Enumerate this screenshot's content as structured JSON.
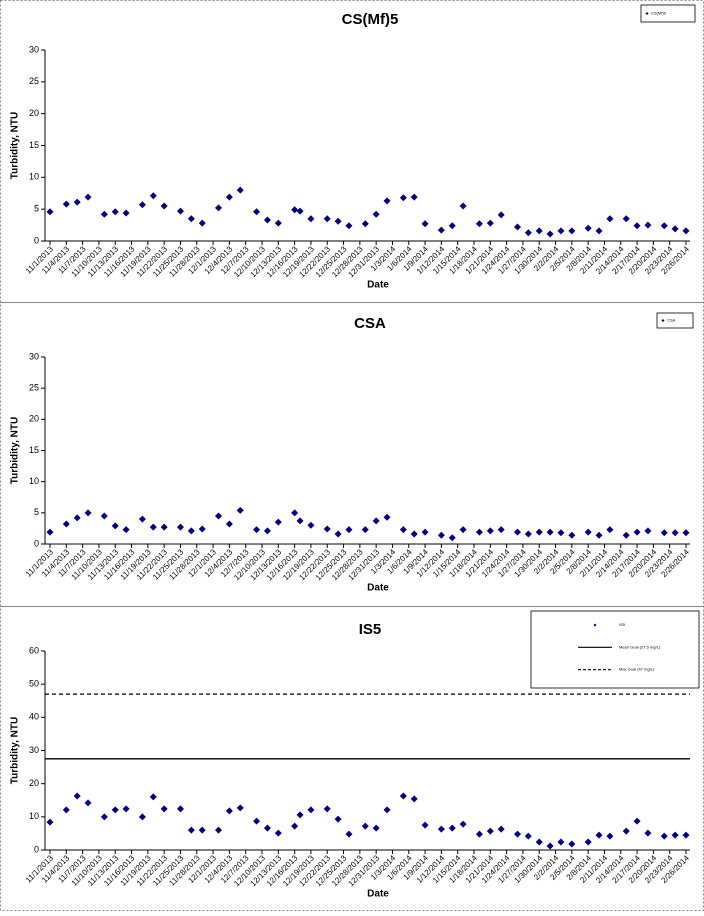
{
  "chart_data": [
    {
      "type": "scatter",
      "title": "CS(Mf)5",
      "x_label": "Date",
      "y_label": "Turbidity, NTU",
      "x": [
        "11/1/2013",
        "11/4/2013",
        "11/6/2013",
        "11/8/2013",
        "11/11/2013",
        "11/13/2013",
        "11/15/2013",
        "11/18/2013",
        "11/20/2013",
        "11/22/2013",
        "11/25/2013",
        "11/27/2013",
        "11/29/2013",
        "12/2/2013",
        "12/4/2013",
        "12/6/2013",
        "12/9/2013",
        "12/11/2013",
        "12/13/2013",
        "12/16/2013",
        "12/17/2013",
        "12/19/2013",
        "12/22/2013",
        "12/24/2013",
        "12/26/2013",
        "12/29/2013",
        "12/31/2013",
        "1/2/2014",
        "1/5/2014",
        "1/7/2014",
        "1/9/2014",
        "1/12/2014",
        "1/14/2014",
        "1/16/2014",
        "1/19/2014",
        "1/21/2014",
        "1/23/2014",
        "1/26/2014",
        "1/28/2014",
        "1/30/2014",
        "2/1/2014",
        "2/3/2014",
        "2/5/2014",
        "2/8/2014",
        "2/10/2014",
        "2/12/2014",
        "2/15/2014",
        "2/17/2014",
        "2/19/2014",
        "2/22/2014",
        "2/24/2014",
        "2/26/2014"
      ],
      "series": [
        {
          "name": "CS(Mf)5",
          "color": "#000080",
          "values": [
            4.6,
            5.8,
            6.1,
            6.9,
            4.2,
            4.6,
            4.4,
            5.7,
            7.1,
            5.5,
            4.7,
            3.5,
            2.8,
            5.2,
            6.9,
            8.0,
            4.6,
            3.3,
            2.8,
            4.9,
            4.7,
            3.5,
            3.5,
            3.1,
            2.4,
            2.7,
            4.2,
            6.3,
            6.8,
            6.9,
            2.7,
            1.7,
            2.4,
            5.5,
            2.7,
            2.8,
            4.1,
            2.2,
            1.3,
            1.6,
            1.1,
            1.6,
            1.6,
            2.0,
            1.6,
            3.5,
            3.5,
            2.4,
            2.5,
            2.4,
            1.9,
            1.6
          ]
        }
      ],
      "xlim": [
        "11/1/2013",
        "2/26/2014"
      ],
      "xticks": [
        "11/1/2013",
        "11/4/2013",
        "11/7/2013",
        "11/10/2013",
        "11/13/2013",
        "11/16/2013",
        "11/19/2013",
        "11/22/2013",
        "11/25/2013",
        "11/28/2013",
        "12/1/2013",
        "12/4/2013",
        "12/7/2013",
        "12/10/2013",
        "12/13/2013",
        "12/16/2013",
        "12/19/2013",
        "12/22/2013",
        "12/25/2013",
        "12/28/2013",
        "12/31/2013",
        "1/3/2014",
        "1/6/2014",
        "1/9/2014",
        "1/12/2014",
        "1/15/2014",
        "1/18/2014",
        "1/21/2014",
        "1/24/2014",
        "1/27/2014",
        "1/30/2014",
        "2/2/2014",
        "2/5/2014",
        "2/8/2014",
        "2/11/2014",
        "2/14/2014",
        "2/17/2014",
        "2/20/2014",
        "2/23/2014",
        "2/26/2014"
      ],
      "ylim": [
        0,
        30
      ],
      "yticks": [
        0,
        5,
        10,
        15,
        20,
        25,
        30
      ]
    },
    {
      "type": "scatter",
      "title": "CSA",
      "x_label": "Date",
      "y_label": "Turbidity, NTU",
      "x": [
        "11/1/2013",
        "11/4/2013",
        "11/6/2013",
        "11/8/2013",
        "11/11/2013",
        "11/13/2013",
        "11/15/2013",
        "11/18/2013",
        "11/20/2013",
        "11/22/2013",
        "11/25/2013",
        "11/27/2013",
        "11/29/2013",
        "12/2/2013",
        "12/4/2013",
        "12/6/2013",
        "12/9/2013",
        "12/11/2013",
        "12/13/2013",
        "12/16/2013",
        "12/17/2013",
        "12/19/2013",
        "12/22/2013",
        "12/24/2013",
        "12/26/2013",
        "12/29/2013",
        "12/31/2013",
        "1/2/2014",
        "1/5/2014",
        "1/7/2014",
        "1/9/2014",
        "1/12/2014",
        "1/14/2014",
        "1/16/2014",
        "1/19/2014",
        "1/21/2014",
        "1/23/2014",
        "1/26/2014",
        "1/28/2014",
        "1/30/2014",
        "2/1/2014",
        "2/3/2014",
        "2/5/2014",
        "2/8/2014",
        "2/10/2014",
        "2/12/2014",
        "2/15/2014",
        "2/17/2014",
        "2/19/2014",
        "2/22/2014",
        "2/24/2014",
        "2/26/2014"
      ],
      "series": [
        {
          "name": "CSA",
          "color": "#000080",
          "values": [
            1.9,
            3.2,
            4.2,
            5.0,
            4.5,
            2.9,
            2.3,
            4.0,
            2.7,
            2.7,
            2.7,
            2.1,
            2.4,
            4.5,
            3.2,
            5.4,
            2.3,
            2.1,
            3.5,
            5.0,
            3.7,
            3.0,
            2.4,
            1.6,
            2.3,
            2.3,
            3.7,
            4.3,
            2.3,
            1.6,
            1.9,
            1.4,
            1.0,
            2.3,
            1.9,
            2.1,
            2.3,
            1.9,
            1.6,
            1.9,
            1.9,
            1.8,
            1.4,
            1.9,
            1.4,
            2.3,
            1.4,
            1.9,
            2.1,
            1.8,
            1.8,
            1.8
          ]
        }
      ],
      "xlim": [
        "11/1/2013",
        "2/26/2014"
      ],
      "xticks": [
        "11/1/2013",
        "11/4/2013",
        "11/7/2013",
        "11/10/2013",
        "11/13/2013",
        "11/16/2013",
        "11/19/2013",
        "11/22/2013",
        "11/25/2013",
        "11/28/2013",
        "12/1/2013",
        "12/4/2013",
        "12/7/2013",
        "12/10/2013",
        "12/13/2013",
        "12/16/2013",
        "12/19/2013",
        "12/22/2013",
        "12/25/2013",
        "12/28/2013",
        "12/31/2013",
        "1/3/2014",
        "1/6/2014",
        "1/9/2014",
        "1/12/2014",
        "1/15/2014",
        "1/18/2014",
        "1/21/2014",
        "1/24/2014",
        "1/27/2014",
        "1/30/2014",
        "2/2/2014",
        "2/5/2014",
        "2/8/2014",
        "2/11/2014",
        "2/14/2014",
        "2/17/2014",
        "2/20/2014",
        "2/23/2014",
        "2/26/2014"
      ],
      "ylim": [
        0,
        30
      ],
      "yticks": [
        0,
        5,
        10,
        15,
        20,
        25,
        30
      ]
    },
    {
      "type": "scatter",
      "title": "IS5",
      "x_label": "Date",
      "y_label": "Turbidity, NTU",
      "x": [
        "11/1/2013",
        "11/4/2013",
        "11/6/2013",
        "11/8/2013",
        "11/11/2013",
        "11/13/2013",
        "11/15/2013",
        "11/18/2013",
        "11/20/2013",
        "11/22/2013",
        "11/25/2013",
        "11/27/2013",
        "11/29/2013",
        "12/2/2013",
        "12/4/2013",
        "12/6/2013",
        "12/9/2013",
        "12/11/2013",
        "12/13/2013",
        "12/16/2013",
        "12/17/2013",
        "12/19/2013",
        "12/22/2013",
        "12/24/2013",
        "12/26/2013",
        "12/29/2013",
        "12/31/2013",
        "1/2/2014",
        "1/5/2014",
        "1/7/2014",
        "1/9/2014",
        "1/12/2014",
        "1/14/2014",
        "1/16/2014",
        "1/19/2014",
        "1/21/2014",
        "1/23/2014",
        "1/26/2014",
        "1/28/2014",
        "1/30/2014",
        "2/1/2014",
        "2/3/2014",
        "2/5/2014",
        "2/8/2014",
        "2/10/2014",
        "2/12/2014",
        "2/15/2014",
        "2/17/2014",
        "2/19/2014",
        "2/22/2014",
        "2/24/2014",
        "2/26/2014"
      ],
      "series": [
        {
          "name": "IS5",
          "color": "#000080",
          "values": [
            8.4,
            12.1,
            16.3,
            14.2,
            10.0,
            12.1,
            12.4,
            10.0,
            16.0,
            12.4,
            12.4,
            6.0,
            6.0,
            6.0,
            11.8,
            12.7,
            8.7,
            6.6,
            5.1,
            7.2,
            10.6,
            12.1,
            12.4,
            9.3,
            4.8,
            7.2,
            6.6,
            12.1,
            16.3,
            15.4,
            7.5,
            6.3,
            6.6,
            7.8,
            4.8,
            5.7,
            6.3,
            4.8,
            4.2,
            2.4,
            1.2,
            2.4,
            1.8,
            2.4,
            4.5,
            4.2,
            5.7,
            8.7,
            5.1,
            4.2,
            4.5,
            4.5
          ]
        }
      ],
      "lines": [
        {
          "name": "Mean Goal (27.5 mg/L)",
          "value": 27.5,
          "style": "solid"
        },
        {
          "name": "Max Goal (47 mg/L)",
          "value": 47,
          "style": "dashed"
        }
      ],
      "xlim": [
        "11/1/2013",
        "2/26/2014"
      ],
      "xticks": [
        "11/1/2013",
        "11/4/2013",
        "11/7/2013",
        "11/10/2013",
        "11/13/2013",
        "11/16/2013",
        "11/19/2013",
        "11/22/2013",
        "11/25/2013",
        "11/28/2013",
        "12/1/2013",
        "12/4/2013",
        "12/7/2013",
        "12/10/2013",
        "12/13/2013",
        "12/16/2013",
        "12/19/2013",
        "12/22/2013",
        "12/25/2013",
        "12/28/2013",
        "12/31/2013",
        "1/3/2014",
        "1/6/2014",
        "1/9/2014",
        "1/12/2014",
        "1/15/2014",
        "1/18/2014",
        "1/21/2014",
        "1/24/2014",
        "1/27/2014",
        "1/30/2014",
        "2/2/2014",
        "2/5/2014",
        "2/8/2014",
        "2/11/2014",
        "2/14/2014",
        "2/17/2014",
        "2/20/2014",
        "2/23/2014",
        "2/26/2014"
      ],
      "ylim": [
        0,
        60
      ],
      "yticks": [
        0,
        10,
        20,
        30,
        40,
        50,
        60
      ]
    }
  ]
}
